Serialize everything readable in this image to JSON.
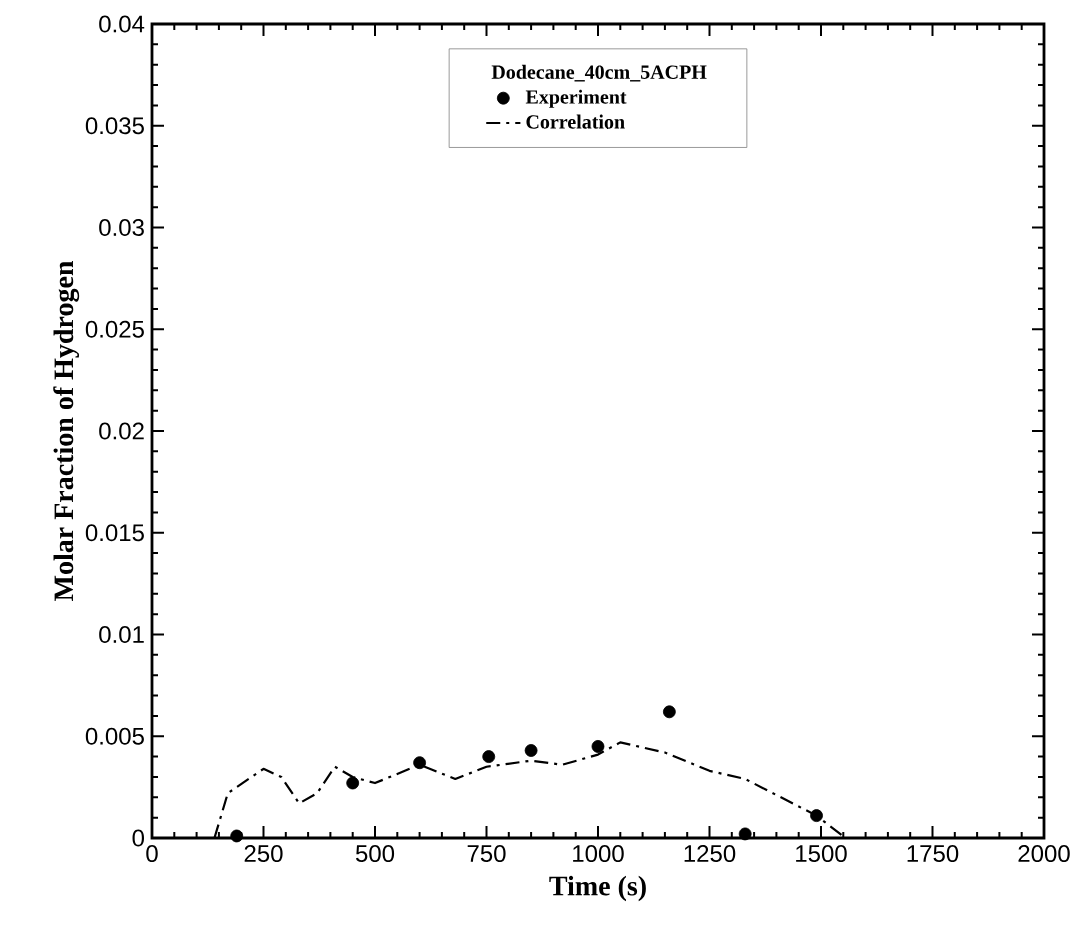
{
  "chart_data": {
    "type": "scatter",
    "xlabel": "Time (s)",
    "ylabel": "Molar Fraction of Hydrogen",
    "legend_title": "Dodecane_40cm_5ACPH",
    "legend": "top",
    "grid": false,
    "xlim": [
      0,
      2000
    ],
    "xticks": [
      0,
      250,
      500,
      750,
      1000,
      1250,
      1500,
      1750,
      2000
    ],
    "ylim": [
      0,
      0.04
    ],
    "yticks": [
      0,
      0.005,
      0.01,
      0.015,
      0.02,
      0.025,
      0.03,
      0.035,
      0.04
    ],
    "series": [
      {
        "name": "Experiment",
        "marker": "circle",
        "color": "#000000",
        "x": [
          190,
          450,
          600,
          755,
          850,
          1000,
          1160,
          1330,
          1490
        ],
        "values": [
          0.0001,
          0.0027,
          0.0037,
          0.004,
          0.0043,
          0.0045,
          0.0062,
          0.0002,
          0.0011
        ]
      },
      {
        "name": "Correlation",
        "type": "line",
        "line_style": "dashdot",
        "marker": "none",
        "color": "#000000",
        "x": [
          140,
          170,
          250,
          290,
          330,
          370,
          410,
          450,
          500,
          600,
          680,
          750,
          850,
          920,
          1000,
          1050,
          1150,
          1250,
          1330,
          1490,
          1555
        ],
        "values": [
          0,
          0.0022,
          0.0034,
          0.003,
          0.0017,
          0.0022,
          0.0035,
          0.003,
          0.0027,
          0.0036,
          0.0029,
          0.0035,
          0.0038,
          0.0036,
          0.0041,
          0.0047,
          0.0042,
          0.0033,
          0.0029,
          0.0011,
          0
        ]
      }
    ]
  }
}
